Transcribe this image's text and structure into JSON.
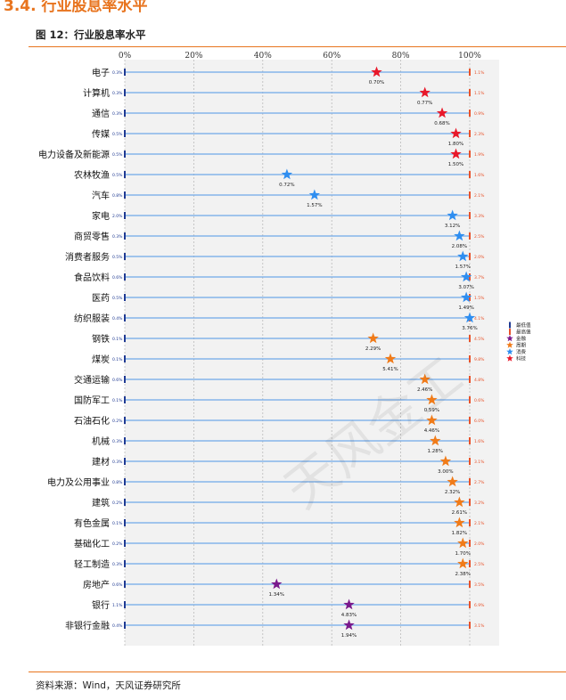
{
  "header": {
    "section_title": "3.4. 行业股息率水平",
    "figure_title": "图 12：行业股息率水平"
  },
  "footer": {
    "source": "资料来源：Wind，天风证券研究所"
  },
  "watermark": "天风金工",
  "colors": {
    "min_marker": "#1f3a93",
    "max_marker": "#e8522a",
    "row_line": "#6fa8e8",
    "plot_bg": "#f2f2f2",
    "金融": "#7a1a8c",
    "周期": "#f07b19",
    "消费": "#2f8ef0",
    "科技": "#e8182a"
  },
  "chart_data": {
    "type": "scatter",
    "title": "",
    "xlabel": "",
    "ylabel": "",
    "xlim": [
      0,
      100
    ],
    "x_ticks": [
      "0%",
      "20%",
      "40%",
      "60%",
      "80%",
      "100%"
    ],
    "legend": {
      "placement": "right",
      "entries": [
        "最低值",
        "最高值",
        "金融",
        "周期",
        "消费",
        "科技"
      ]
    },
    "series": [
      {
        "category": "电子",
        "group": "科技",
        "min": "0.3%",
        "max": "1.1%",
        "current": 0.7,
        "percentile": 73
      },
      {
        "category": "计算机",
        "group": "科技",
        "min": "0.3%",
        "max": "1.1%",
        "current": 0.77,
        "percentile": 87
      },
      {
        "category": "通信",
        "group": "科技",
        "min": "0.3%",
        "max": "0.9%",
        "current": 0.68,
        "percentile": 92
      },
      {
        "category": "传媒",
        "group": "科技",
        "min": "0.5%",
        "max": "2.3%",
        "current": 1.8,
        "percentile": 96
      },
      {
        "category": "电力设备及新能源",
        "group": "科技",
        "min": "0.5%",
        "max": "1.9%",
        "current": 1.5,
        "percentile": 96
      },
      {
        "category": "农林牧渔",
        "group": "消费",
        "min": "0.5%",
        "max": "1.6%",
        "current": 0.72,
        "percentile": 47
      },
      {
        "category": "汽车",
        "group": "消费",
        "min": "0.8%",
        "max": "2.1%",
        "current": 1.57,
        "percentile": 55
      },
      {
        "category": "家电",
        "group": "消费",
        "min": "2.0%",
        "max": "3.3%",
        "current": 3.12,
        "percentile": 95
      },
      {
        "category": "商贸零售",
        "group": "消费",
        "min": "0.3%",
        "max": "2.5%",
        "current": 2.08,
        "percentile": 97
      },
      {
        "category": "消费者服务",
        "group": "消费",
        "min": "0.5%",
        "max": "2.0%",
        "current": 1.57,
        "percentile": 98
      },
      {
        "category": "食品饮料",
        "group": "消费",
        "min": "0.6%",
        "max": "3.7%",
        "current": 3.07,
        "percentile": 99
      },
      {
        "category": "医药",
        "group": "消费",
        "min": "0.5%",
        "max": "1.5%",
        "current": 1.49,
        "percentile": 99
      },
      {
        "category": "纺织服装",
        "group": "消费",
        "min": "0.4%",
        "max": "4.1%",
        "current": 3.76,
        "percentile": 100
      },
      {
        "category": "钢铁",
        "group": "周期",
        "min": "0.1%",
        "max": "4.5%",
        "current": 2.29,
        "percentile": 72
      },
      {
        "category": "煤炭",
        "group": "周期",
        "min": "0.1%",
        "max": "9.8%",
        "current": 5.41,
        "percentile": 77
      },
      {
        "category": "交通运输",
        "group": "周期",
        "min": "0.6%",
        "max": "4.8%",
        "current": 2.46,
        "percentile": 87
      },
      {
        "category": "国防军工",
        "group": "周期",
        "min": "0.1%",
        "max": "0.6%",
        "current": 0.59,
        "percentile": 89
      },
      {
        "category": "石油石化",
        "group": "周期",
        "min": "0.2%",
        "max": "6.0%",
        "current": 4.46,
        "percentile": 89
      },
      {
        "category": "机械",
        "group": "周期",
        "min": "0.3%",
        "max": "1.6%",
        "current": 1.28,
        "percentile": 90
      },
      {
        "category": "建材",
        "group": "周期",
        "min": "0.3%",
        "max": "3.1%",
        "current": 3.0,
        "percentile": 93
      },
      {
        "category": "电力及公用事业",
        "group": "周期",
        "min": "0.8%",
        "max": "2.7%",
        "current": 2.32,
        "percentile": 95
      },
      {
        "category": "建筑",
        "group": "周期",
        "min": "0.2%",
        "max": "3.2%",
        "current": 2.61,
        "percentile": 97
      },
      {
        "category": "有色金属",
        "group": "周期",
        "min": "0.1%",
        "max": "2.1%",
        "current": 1.82,
        "percentile": 97
      },
      {
        "category": "基础化工",
        "group": "周期",
        "min": "0.2%",
        "max": "2.0%",
        "current": 1.7,
        "percentile": 98
      },
      {
        "category": "轻工制造",
        "group": "周期",
        "min": "0.3%",
        "max": "2.5%",
        "current": 2.38,
        "percentile": 98
      },
      {
        "category": "房地产",
        "group": "金融",
        "min": "0.6%",
        "max": "3.5%",
        "current": 1.34,
        "percentile": 44
      },
      {
        "category": "银行",
        "group": "金融",
        "min": "1.1%",
        "max": "6.9%",
        "current": 4.83,
        "percentile": 65
      },
      {
        "category": "非银行金融",
        "group": "金融",
        "min": "0.4%",
        "max": "3.1%",
        "current": 1.94,
        "percentile": 65
      }
    ]
  }
}
